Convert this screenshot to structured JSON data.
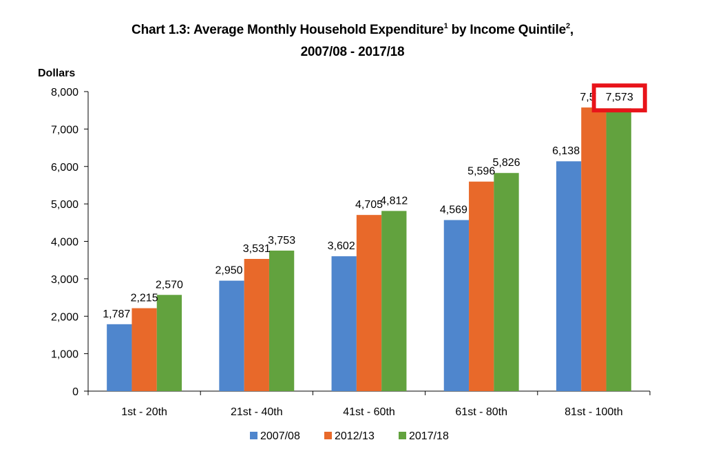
{
  "title": {
    "line1_prefix": "Chart 1.3: Average Monthly Household Expenditure",
    "sup1": "1",
    "line1_middle": " by Income Quintile",
    "sup2": "2",
    "line1_suffix": ",",
    "line2": "2007/08 - 2017/18"
  },
  "chart_data": {
    "type": "bar",
    "ylabel": "Dollars",
    "ylim": [
      0,
      8000
    ],
    "yticks": [
      0,
      1000,
      2000,
      3000,
      4000,
      5000,
      6000,
      7000,
      8000
    ],
    "ytick_labels": [
      "0",
      "1,000",
      "2,000",
      "3,000",
      "4,000",
      "5,000",
      "6,000",
      "7,000",
      "8,000"
    ],
    "categories": [
      "1st - 20th",
      "21st - 40th",
      "41st - 60th",
      "61st - 80th",
      "81st - 100th"
    ],
    "series": [
      {
        "name": "2007/08",
        "color": "#4f86cd",
        "values": [
          1787,
          2950,
          3602,
          4569,
          6138
        ],
        "labels": [
          "1,787",
          "2,950",
          "3,602",
          "4,569",
          "6,138"
        ]
      },
      {
        "name": "2012/13",
        "color": "#e8692a",
        "values": [
          2215,
          3531,
          4705,
          5596,
          7575
        ],
        "labels": [
          "2,215",
          "3,531",
          "4,705",
          "5,596",
          "7,575"
        ]
      },
      {
        "name": "2017/18",
        "color": "#62a23e",
        "values": [
          2570,
          3753,
          4812,
          5826,
          7573
        ],
        "labels": [
          "2,570",
          "3,753",
          "4,812",
          "5,826",
          "7,573"
        ]
      }
    ],
    "grid": false,
    "legend": "bottom",
    "highlight": {
      "series": 2,
      "category": 4,
      "color": "#e8141a"
    }
  }
}
